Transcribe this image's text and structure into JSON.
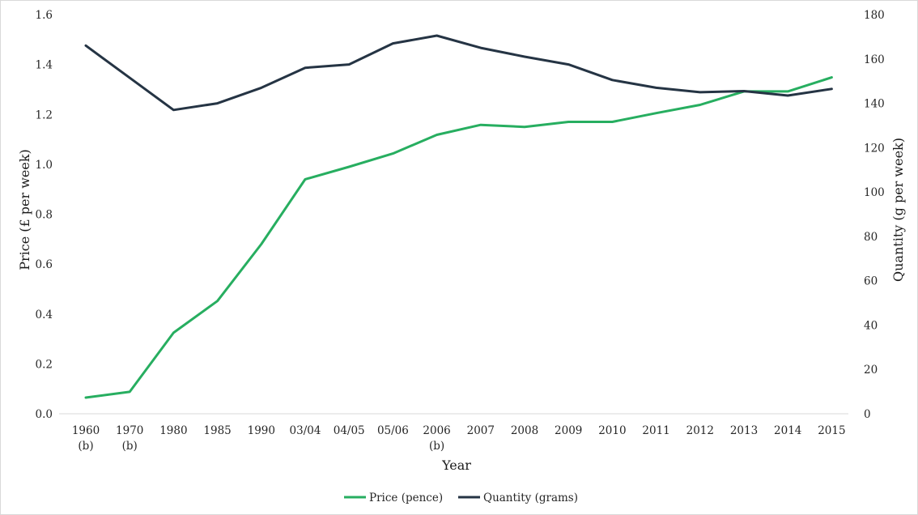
{
  "chart_data": {
    "type": "line",
    "xlabel": "Year",
    "ylabel_left": "Price (£ per week)",
    "ylabel_right": "Quantity (g per week)",
    "ylim_left": [
      0,
      1.6
    ],
    "ylim_right": [
      0,
      180
    ],
    "yticks_left": [
      "0.0",
      "0.2",
      "0.4",
      "0.6",
      "0.8",
      "1.0",
      "1.2",
      "1.4",
      "1.6"
    ],
    "yticks_right": [
      "0",
      "20",
      "40",
      "60",
      "80",
      "100",
      "120",
      "140",
      "160",
      "180"
    ],
    "categories": [
      {
        "label": "1960",
        "sub": "(b)"
      },
      {
        "label": "1970",
        "sub": "(b)"
      },
      {
        "label": "1980",
        "sub": ""
      },
      {
        "label": "1985",
        "sub": ""
      },
      {
        "label": "1990",
        "sub": ""
      },
      {
        "label": "03/04",
        "sub": ""
      },
      {
        "label": "04/05",
        "sub": ""
      },
      {
        "label": "05/06",
        "sub": ""
      },
      {
        "label": "2006",
        "sub": "(b)"
      },
      {
        "label": "2007",
        "sub": ""
      },
      {
        "label": "2008",
        "sub": ""
      },
      {
        "label": "2009",
        "sub": ""
      },
      {
        "label": "2010",
        "sub": ""
      },
      {
        "label": "2011",
        "sub": ""
      },
      {
        "label": "2012",
        "sub": ""
      },
      {
        "label": "2013",
        "sub": ""
      },
      {
        "label": "2014",
        "sub": ""
      },
      {
        "label": "2015",
        "sub": ""
      }
    ],
    "series": [
      {
        "name": "Price (pence)",
        "axis": "left",
        "color": "#27ae60",
        "values": [
          0.065,
          0.088,
          0.325,
          0.452,
          0.68,
          0.94,
          0.99,
          1.043,
          1.118,
          1.158,
          1.15,
          1.17,
          1.17,
          1.205,
          1.238,
          1.292,
          1.292,
          1.348
        ]
      },
      {
        "name": "Quantity (grams)",
        "axis": "right",
        "color": "#253444",
        "values": [
          166,
          151.5,
          137,
          140,
          147,
          156,
          157.5,
          167,
          170.5,
          165,
          161,
          157.5,
          150.5,
          147,
          145,
          145.5,
          143.5,
          146.5
        ]
      }
    ],
    "grid": false,
    "legend_position": "bottom-center"
  }
}
